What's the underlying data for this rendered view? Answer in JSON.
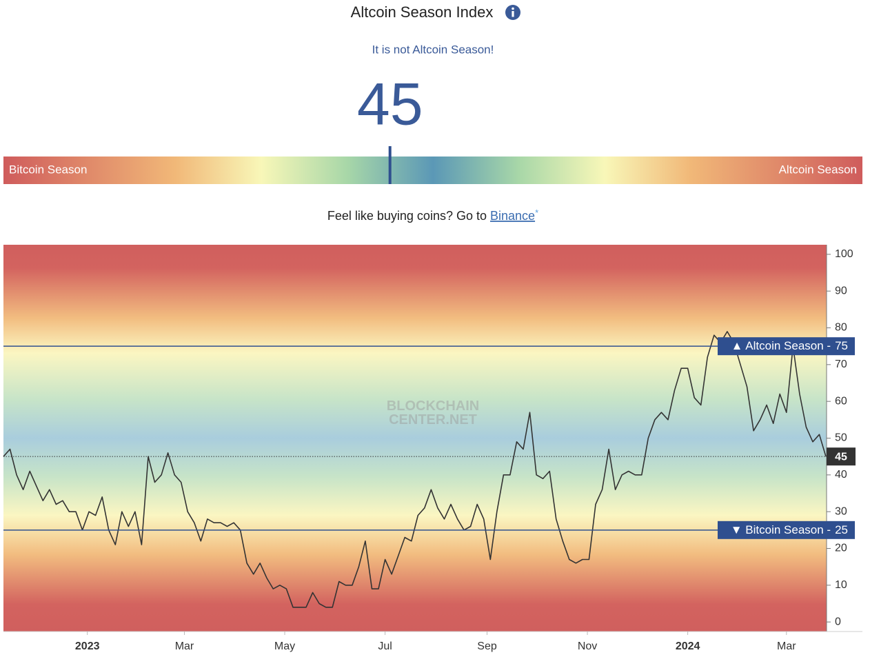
{
  "header": {
    "title": "Altcoin Season Index",
    "status": "It is not Altcoin Season!"
  },
  "gauge": {
    "value": 45,
    "scale": [
      0,
      100
    ],
    "left_label": "Bitcoin Season",
    "right_label": "Altcoin Season"
  },
  "promo": {
    "text": "Feel like buying coins? Go to",
    "link": "Binance",
    "asterisk": "*"
  },
  "chart_data": {
    "type": "line",
    "color": "#333333",
    "values": [
      45,
      47,
      40,
      36,
      41,
      37,
      33,
      36,
      32,
      33,
      30,
      30,
      25,
      30,
      29,
      34,
      25,
      21,
      30,
      26,
      30,
      21,
      45,
      38,
      40,
      46,
      40,
      38,
      30,
      27,
      22,
      28,
      27,
      27,
      26,
      27,
      25,
      16,
      13,
      16,
      12,
      9,
      10,
      9,
      4,
      4,
      4,
      8,
      5,
      4,
      4,
      11,
      10,
      10,
      15,
      22,
      9,
      9,
      17,
      13,
      18,
      23,
      22,
      29,
      31,
      36,
      31,
      28,
      32,
      28,
      25,
      26,
      32,
      28,
      17,
      30,
      40,
      40,
      49,
      47,
      57,
      40,
      39,
      41,
      28,
      22,
      17,
      16,
      17,
      17,
      32,
      36,
      47,
      36,
      40,
      41,
      40,
      40,
      50,
      55,
      57,
      55,
      63,
      69,
      69,
      61,
      59,
      72,
      78,
      76,
      79,
      76,
      70,
      64,
      52,
      55,
      59,
      54,
      62,
      57,
      75,
      62,
      53,
      49,
      51,
      45
    ],
    "xlim": [
      0,
      125.1
    ],
    "xticks": [
      {
        "value": 12.75,
        "label": "2023"
      },
      {
        "value": 27.5,
        "label": "Mar"
      },
      {
        "value": 42.75,
        "label": "May"
      },
      {
        "value": 58,
        "label": "Jul"
      },
      {
        "value": 73.5,
        "label": "Sep"
      },
      {
        "value": 88.75,
        "label": "Nov"
      },
      {
        "value": 104,
        "label": "2024"
      },
      {
        "value": 119,
        "label": "Mar"
      }
    ],
    "ylim": [
      -2.6,
      102.6
    ],
    "yticks": [
      0,
      10,
      20,
      30,
      40,
      50,
      60,
      70,
      80,
      90,
      100
    ],
    "thresholds": [
      {
        "label": "▲ Altcoin Season -",
        "value": 75
      },
      {
        "label": "▼ Bitcoin Season -",
        "value": 25
      }
    ],
    "threshold_color": "#2f4f8f",
    "watermark": [
      "BLOCKCHAIN",
      "CENTER.NET"
    ]
  }
}
